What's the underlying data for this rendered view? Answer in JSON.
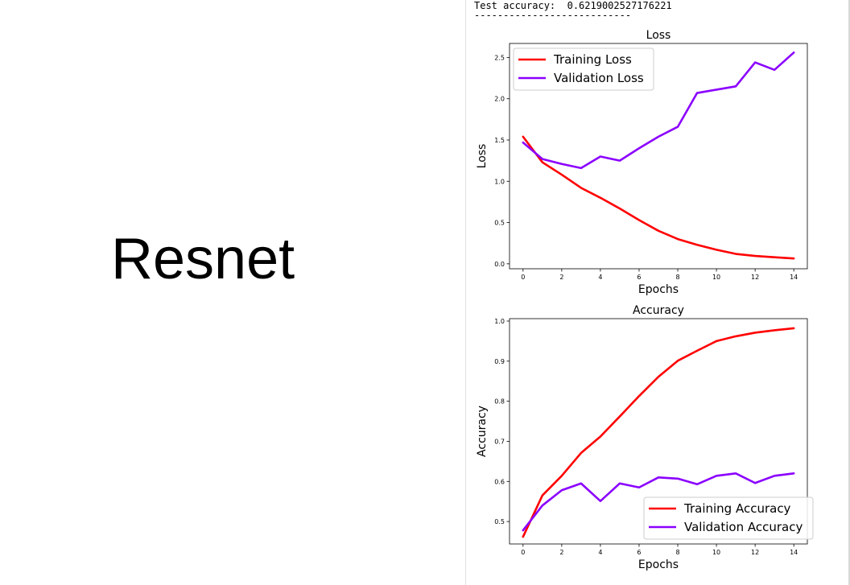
{
  "slide": {
    "title": "Resnet"
  },
  "console": {
    "line1": "Test accuracy:  0.6219002527176221",
    "line2": "---------------------------"
  },
  "colors": {
    "training": "#ff0000",
    "validation": "#8b00ff"
  },
  "chart_data": [
    {
      "type": "line",
      "title": "Loss",
      "xlabel": "Epochs",
      "ylabel": "Loss",
      "x": [
        0,
        1,
        2,
        3,
        4,
        5,
        6,
        7,
        8,
        9,
        10,
        11,
        12,
        13,
        14
      ],
      "xlim": [
        -0.7,
        14.7
      ],
      "ylim": [
        -0.06,
        2.67
      ],
      "xticks": [
        0,
        2,
        4,
        6,
        8,
        10,
        12,
        14
      ],
      "yticks": [
        0.0,
        0.5,
        1.0,
        1.5,
        2.0,
        2.5
      ],
      "ytick_labels": [
        "0.0",
        "0.5",
        "1.0",
        "1.5",
        "2.0",
        "2.5"
      ],
      "legend_position": "upper-left",
      "series": [
        {
          "name": "Training Loss",
          "color": "#ff0000",
          "values": [
            1.54,
            1.23,
            1.08,
            0.92,
            0.8,
            0.67,
            0.53,
            0.4,
            0.3,
            0.23,
            0.17,
            0.12,
            0.095,
            0.08,
            0.065
          ]
        },
        {
          "name": "Validation Loss",
          "color": "#8b00ff",
          "values": [
            1.47,
            1.27,
            1.21,
            1.16,
            1.3,
            1.25,
            1.4,
            1.54,
            1.66,
            2.07,
            2.11,
            2.15,
            2.44,
            2.35,
            2.56
          ]
        }
      ]
    },
    {
      "type": "line",
      "title": "Accuracy",
      "xlabel": "Epochs",
      "ylabel": "Accuracy",
      "x": [
        0,
        1,
        2,
        3,
        4,
        5,
        6,
        7,
        8,
        9,
        10,
        11,
        12,
        13,
        14
      ],
      "xlim": [
        -0.7,
        14.7
      ],
      "ylim": [
        0.444,
        1.006
      ],
      "xticks": [
        0,
        2,
        4,
        6,
        8,
        10,
        12,
        14
      ],
      "yticks": [
        0.5,
        0.6,
        0.7,
        0.8,
        0.9,
        1.0
      ],
      "ytick_labels": [
        "0.5",
        "0.6",
        "0.7",
        "0.8",
        "0.9",
        "1.0"
      ],
      "legend_position": "lower-right",
      "series": [
        {
          "name": "Training Accuracy",
          "color": "#ff0000",
          "values": [
            0.462,
            0.565,
            0.614,
            0.671,
            0.712,
            0.762,
            0.813,
            0.861,
            0.901,
            0.926,
            0.95,
            0.962,
            0.971,
            0.977,
            0.982
          ]
        },
        {
          "name": "Validation Accuracy",
          "color": "#8b00ff",
          "values": [
            0.478,
            0.54,
            0.578,
            0.595,
            0.551,
            0.595,
            0.585,
            0.61,
            0.607,
            0.593,
            0.614,
            0.62,
            0.596,
            0.614,
            0.62
          ]
        }
      ]
    }
  ]
}
